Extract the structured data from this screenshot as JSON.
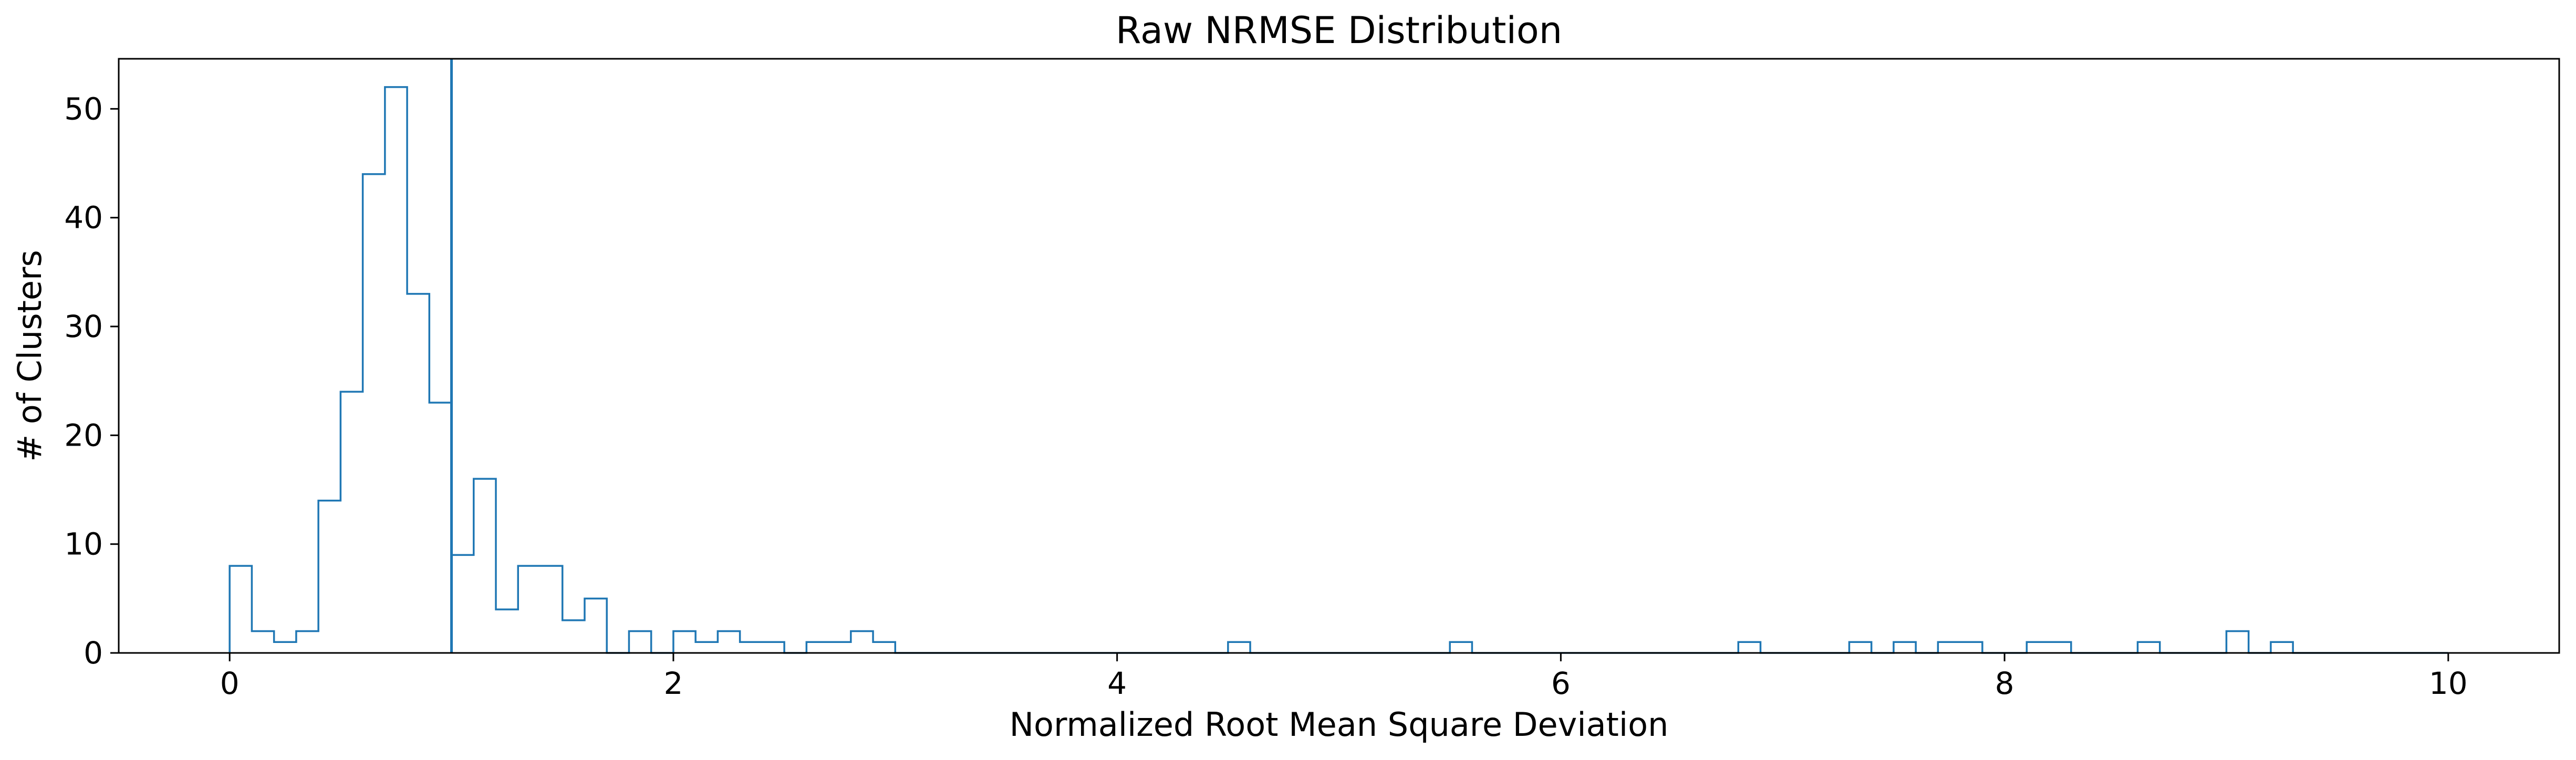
{
  "chart_data": {
    "type": "histogram",
    "title": "Raw NRMSE Distribution",
    "xlabel": "Normalized Root Mean Square Deviation",
    "ylabel": "# of Clusters",
    "xlim": [
      -0.5,
      10.5
    ],
    "ylim": [
      0,
      54.6
    ],
    "x_ticks": [
      0,
      2,
      4,
      6,
      8,
      10
    ],
    "y_ticks": [
      0,
      10,
      20,
      30,
      40,
      50
    ],
    "bin_start": 0,
    "bin_width": 0.1,
    "counts": [
      8,
      2,
      1,
      2,
      14,
      24,
      44,
      52,
      33,
      23,
      9,
      16,
      4,
      8,
      8,
      3,
      5,
      0,
      2,
      0,
      2,
      1,
      2,
      1,
      1,
      0,
      1,
      1,
      2,
      1,
      0,
      0,
      0,
      0,
      0,
      0,
      0,
      0,
      0,
      0,
      0,
      0,
      0,
      0,
      0,
      1,
      0,
      0,
      0,
      0,
      0,
      0,
      0,
      0,
      0,
      1,
      0,
      0,
      0,
      0,
      0,
      0,
      0,
      0,
      0,
      0,
      0,
      0,
      1,
      0,
      0,
      0,
      0,
      1,
      0,
      1,
      0,
      1,
      1,
      0,
      0,
      1,
      1,
      0,
      0,
      0,
      1,
      0,
      0,
      0,
      2,
      0,
      1,
      0,
      0,
      0,
      0,
      0,
      0,
      0
    ],
    "vline_x": 1.0,
    "color": "#1f77b4",
    "grid": false,
    "legend": "none"
  }
}
